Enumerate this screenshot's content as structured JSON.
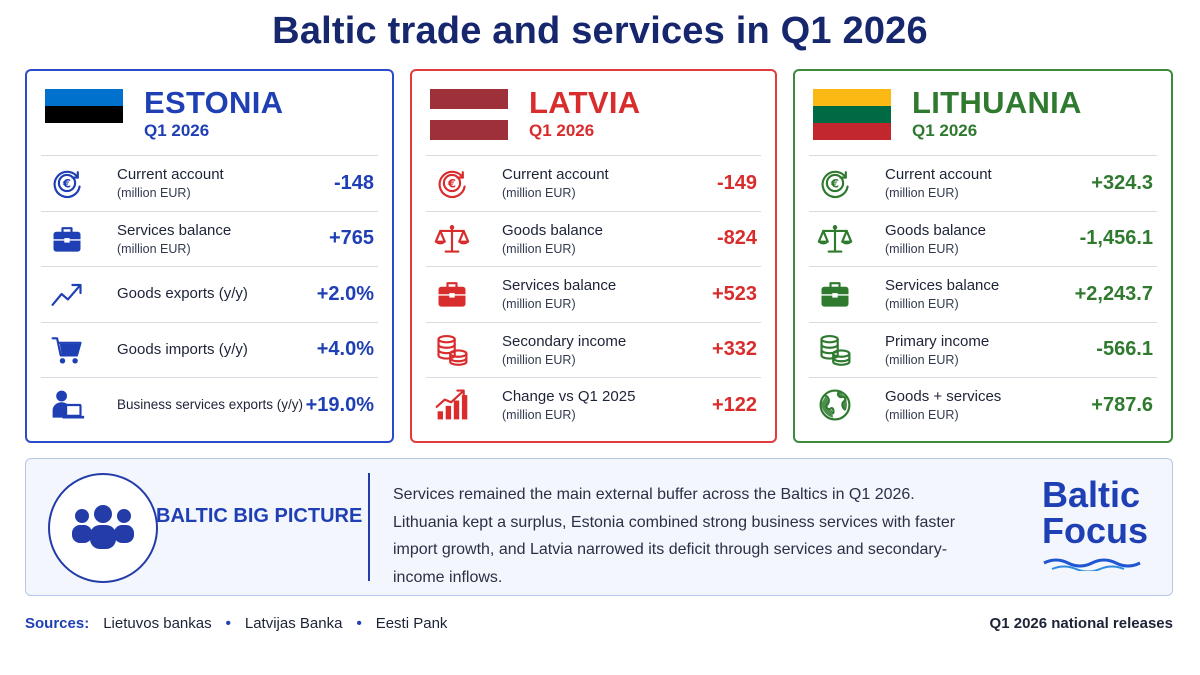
{
  "title": "Baltic trade and services in Q1 2026",
  "colors": {
    "estonia": "#1f3fb4",
    "latvia": "#d92c2c",
    "lithuania": "#2f7a2f"
  },
  "estonia": {
    "name": "ESTONIA",
    "period": "Q1 2026",
    "flag": [
      "#0072ce",
      "#000000",
      "#ffffff"
    ],
    "rows": [
      {
        "icon": "euro-cycle-icon",
        "label": "Current account",
        "unit": "(million EUR)",
        "value": "-148"
      },
      {
        "icon": "briefcase-icon",
        "label": "Services balance",
        "unit": "(million EUR)",
        "value": "+765"
      },
      {
        "icon": "trend-up-icon",
        "label": "Goods exports (y/y)",
        "unit": "",
        "value": "+2.0%"
      },
      {
        "icon": "cart-icon",
        "label": "Goods imports (y/y)",
        "unit": "",
        "value": "+4.0%"
      },
      {
        "icon": "person-laptop-icon",
        "label": "Business services exports (y/y)",
        "unit": "",
        "value": "+19.0%"
      }
    ]
  },
  "latvia": {
    "name": "LATVIA",
    "period": "Q1 2026",
    "flag": [
      "#9e3039",
      "#ffffff",
      "#9e3039"
    ],
    "rows": [
      {
        "icon": "euro-cycle-icon",
        "label": "Current account",
        "unit": "(million EUR)",
        "value": "-149"
      },
      {
        "icon": "scales-icon",
        "label": "Goods balance",
        "unit": "(million EUR)",
        "value": "-824"
      },
      {
        "icon": "briefcase-icon",
        "label": "Services balance",
        "unit": "(million EUR)",
        "value": "+523"
      },
      {
        "icon": "coins-icon",
        "label": "Secondary income",
        "unit": "(million EUR)",
        "value": "+332"
      },
      {
        "icon": "bar-growth-icon",
        "label": "Change vs Q1 2025",
        "unit": "(million EUR)",
        "value": "+122"
      }
    ]
  },
  "lithuania": {
    "name": "LITHUANIA",
    "period": "Q1 2026",
    "flag": [
      "#fdb913",
      "#006a44",
      "#c1272d"
    ],
    "rows": [
      {
        "icon": "euro-cycle-icon",
        "label": "Current account",
        "unit": "(million EUR)",
        "value": "+324.3"
      },
      {
        "icon": "scales-icon",
        "label": "Goods balance",
        "unit": "(million EUR)",
        "value": "-1,456.1"
      },
      {
        "icon": "briefcase-icon",
        "label": "Services balance",
        "unit": "(million EUR)",
        "value": "+2,243.7"
      },
      {
        "icon": "coins-icon",
        "label": "Primary income",
        "unit": "(million EUR)",
        "value": "-566.1"
      },
      {
        "icon": "globe-icon",
        "label": "Goods + services",
        "unit": "(million EUR)",
        "value": "+787.6"
      }
    ]
  },
  "banner": {
    "heading": "BALTIC BIG PICTURE",
    "text": "Services remained the main external buffer across the Baltics in Q1 2026. Lithuania kept a surplus, Estonia combined strong business services with faster import growth, and Latvia narrowed its deficit through services and secondary-income inflows.",
    "logo_line1": "Baltic",
    "logo_line2": "Focus"
  },
  "footer": {
    "sources_label": "Sources:",
    "sources": [
      "Lietuvos bankas",
      "Latvijas Banka",
      "Eesti Pank"
    ],
    "separator": "•",
    "note": "Q1 2026 national releases"
  }
}
